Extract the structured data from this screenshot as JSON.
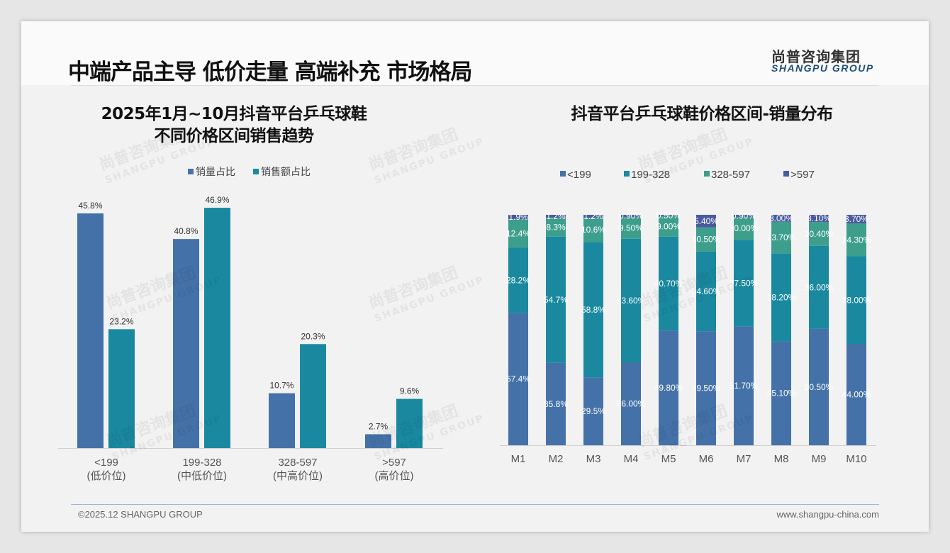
{
  "header": {
    "title": "中端产品主导 低价走量 高端补充 市场格局",
    "logo_cn": "尚普咨询集团",
    "logo_en": "SHANGPU GROUP"
  },
  "watermark": {
    "cn": "尚普咨询集团",
    "en": "SHANGPU GROUP"
  },
  "footer": {
    "copyright": "©2025.12 SHANGPU GROUP",
    "website": "www.shangpu-china.com"
  },
  "colors": {
    "blue": "#4472a8",
    "teal": "#1a89a0",
    "green": "#3e9e8c",
    "purple": "#4b5aa0"
  },
  "chart_data": [
    {
      "type": "bar",
      "title_line1": "2025年1月~10月抖音平台乒乓球鞋",
      "title_line2": "不同价格区间销售趋势",
      "categories": [
        "<199",
        "199-328",
        "328-597",
        ">597"
      ],
      "sublabels": [
        "(低价位)",
        "(中低价位)",
        "(中高价位)",
        "(高价位)"
      ],
      "legend": "top",
      "series": [
        {
          "name": "销量占比",
          "values": [
            45.8,
            40.8,
            10.7,
            2.7
          ],
          "labels": [
            "45.8%",
            "40.8%",
            "10.7%",
            "2.7%"
          ]
        },
        {
          "name": "销售额占比",
          "values": [
            23.2,
            46.9,
            20.3,
            9.6
          ],
          "labels": [
            "23.2%",
            "46.9%",
            "20.3%",
            "9.6%"
          ]
        }
      ],
      "ylim": [
        0,
        50
      ]
    },
    {
      "type": "bar",
      "stacked": true,
      "title": "抖音平台乒乓球鞋价格区间-销量分布",
      "categories": [
        "M1",
        "M2",
        "M3",
        "M4",
        "M5",
        "M6",
        "M7",
        "M8",
        "M9",
        "M10"
      ],
      "legend": "top",
      "series": [
        {
          "name": "<199",
          "values": [
            57.4,
            35.8,
            29.5,
            36.0,
            49.8,
            49.5,
            51.7,
            45.1,
            50.5,
            44.0
          ],
          "labels": [
            "57.4%",
            "35.8%",
            "29.5%",
            "36.00%",
            "49.80%",
            "49.50%",
            "51.70%",
            "45.10%",
            "50.50%",
            "44.00%"
          ]
        },
        {
          "name": "199-328",
          "values": [
            28.2,
            54.7,
            58.8,
            53.6,
            40.7,
            34.6,
            37.5,
            38.2,
            36.0,
            38.0
          ],
          "labels": [
            "28.2%",
            "54.7%",
            "58.8%",
            "53.60%",
            "40.70%",
            "34.60%",
            "37.50%",
            "38.20%",
            "36.00%",
            "38.00%"
          ]
        },
        {
          "name": "328-597",
          "values": [
            12.4,
            8.3,
            10.6,
            9.5,
            9.0,
            10.5,
            10.0,
            13.7,
            10.4,
            14.3
          ],
          "labels": [
            "12.4%",
            "8.3%",
            "10.6%",
            "9.50%",
            "9.00%",
            "10.50%",
            "10.00%",
            "13.70%",
            "10.40%",
            "14.30%"
          ]
        },
        {
          "name": ">597",
          "values": [
            1.9,
            1.2,
            1.2,
            0.9,
            0.5,
            5.4,
            0.9,
            3.0,
            3.1,
            3.7
          ],
          "labels": [
            "1.9%",
            "1.2%",
            "1.2%",
            "0.90%",
            "0.50%",
            "5.40%",
            "0.90%",
            "3.00%",
            "3.10%",
            "3.70%"
          ]
        }
      ],
      "ylim": [
        0,
        100
      ]
    }
  ]
}
